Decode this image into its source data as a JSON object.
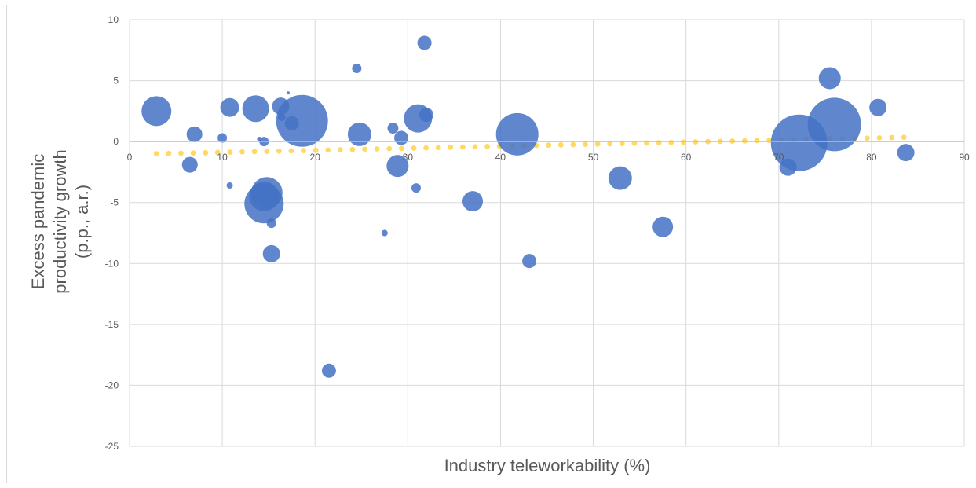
{
  "chart_data": {
    "type": "scatter",
    "subtype": "bubble",
    "title": "",
    "xlabel": "Industry teleworkability (%)",
    "ylabel_lines": [
      "Excess pandemic",
      "productivity growth",
      "(p.p., a.r.)"
    ],
    "xlim": [
      0,
      90
    ],
    "ylim": [
      -25,
      10
    ],
    "x_ticks": [
      0,
      10,
      20,
      30,
      40,
      50,
      60,
      70,
      80,
      90
    ],
    "y_ticks": [
      10,
      5,
      0,
      -5,
      -10,
      -15,
      -20,
      -25
    ],
    "grid": true,
    "legend": "none",
    "colors": {
      "bubble": "#4472c4",
      "trendline": "#ffd966",
      "grid": "#d9d9d9",
      "text": "#595959"
    },
    "series": [
      {
        "points": [
          {
            "x": 2.9,
            "y": 2.5,
            "r": 19
          },
          {
            "x": 6.5,
            "y": -1.9,
            "r": 10
          },
          {
            "x": 7.0,
            "y": 0.6,
            "r": 10
          },
          {
            "x": 10.0,
            "y": 0.3,
            "r": 6
          },
          {
            "x": 10.8,
            "y": 2.8,
            "r": 12
          },
          {
            "x": 10.8,
            "y": -3.6,
            "r": 4
          },
          {
            "x": 13.6,
            "y": 2.7,
            "r": 17
          },
          {
            "x": 14.0,
            "y": 0.2,
            "r": 3
          },
          {
            "x": 14.5,
            "y": 0.0,
            "r": 6
          },
          {
            "x": 14.5,
            "y": -4.5,
            "r": 19
          },
          {
            "x": 14.8,
            "y": -4.2,
            "r": 20
          },
          {
            "x": 14.5,
            "y": -5.1,
            "r": 25
          },
          {
            "x": 15.3,
            "y": -6.7,
            "r": 6
          },
          {
            "x": 15.3,
            "y": -9.2,
            "r": 11
          },
          {
            "x": 16.3,
            "y": 2.9,
            "r": 11
          },
          {
            "x": 16.4,
            "y": 2.0,
            "r": 5
          },
          {
            "x": 17.1,
            "y": 4.0,
            "r": 2
          },
          {
            "x": 17.5,
            "y": 1.5,
            "r": 9
          },
          {
            "x": 18.6,
            "y": 1.7,
            "r": 33
          },
          {
            "x": 21.5,
            "y": -18.8,
            "r": 9
          },
          {
            "x": 24.5,
            "y": 6.0,
            "r": 6
          },
          {
            "x": 24.8,
            "y": 0.6,
            "r": 15
          },
          {
            "x": 27.5,
            "y": -7.5,
            "r": 4
          },
          {
            "x": 28.4,
            "y": 1.1,
            "r": 7
          },
          {
            "x": 28.9,
            "y": -2.0,
            "r": 14
          },
          {
            "x": 29.3,
            "y": 0.3,
            "r": 9
          },
          {
            "x": 30.9,
            "y": -3.8,
            "r": 6
          },
          {
            "x": 31.1,
            "y": 1.9,
            "r": 18
          },
          {
            "x": 31.8,
            "y": 8.1,
            "r": 9
          },
          {
            "x": 32.0,
            "y": 2.2,
            "r": 9
          },
          {
            "x": 37.0,
            "y": -4.9,
            "r": 13
          },
          {
            "x": 41.8,
            "y": 0.6,
            "r": 27
          },
          {
            "x": 43.1,
            "y": -9.8,
            "r": 9
          },
          {
            "x": 52.9,
            "y": -3.0,
            "r": 15
          },
          {
            "x": 57.5,
            "y": -7.0,
            "r": 13
          },
          {
            "x": 71.0,
            "y": -2.1,
            "r": 11
          },
          {
            "x": 72.2,
            "y": -0.1,
            "r": 36
          },
          {
            "x": 75.5,
            "y": 5.2,
            "r": 14
          },
          {
            "x": 76.0,
            "y": 1.4,
            "r": 34
          },
          {
            "x": 80.7,
            "y": 2.8,
            "r": 11
          },
          {
            "x": 83.7,
            "y": -0.9,
            "r": 11
          }
        ]
      }
    ],
    "trendline": {
      "style": "dotted",
      "x_range": [
        2.9,
        83.5
      ],
      "y_start": -1.0,
      "y_end": 0.35
    }
  }
}
